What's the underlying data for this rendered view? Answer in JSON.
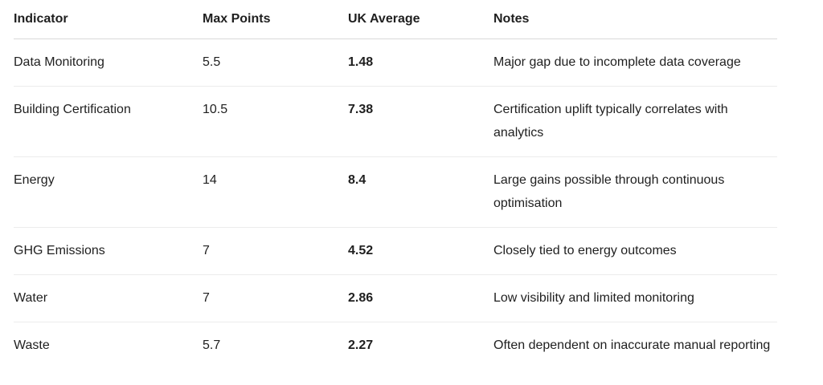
{
  "table": {
    "headers": [
      "Indicator",
      "Max Points",
      "UK Average",
      "Notes"
    ],
    "rows": [
      {
        "indicator": "Data Monitoring",
        "max_points": "5.5",
        "uk_average": "1.48",
        "notes": "Major gap due to incomplete data coverage"
      },
      {
        "indicator": "Building Certification",
        "max_points": "10.5",
        "uk_average": "7.38",
        "notes": "Certification uplift typically correlates with analytics"
      },
      {
        "indicator": "Energy",
        "max_points": "14",
        "uk_average": "8.4",
        "notes": "Large gains possible through continuous optimisation"
      },
      {
        "indicator": "GHG Emissions",
        "max_points": "7",
        "uk_average": "4.52",
        "notes": "Closely tied to energy outcomes"
      },
      {
        "indicator": "Water",
        "max_points": "7",
        "uk_average": "2.86",
        "notes": "Low visibility and limited monitoring"
      },
      {
        "indicator": "Waste",
        "max_points": "5.7",
        "uk_average": "2.27",
        "notes": "Often dependent on inaccurate manual reporting"
      }
    ]
  }
}
